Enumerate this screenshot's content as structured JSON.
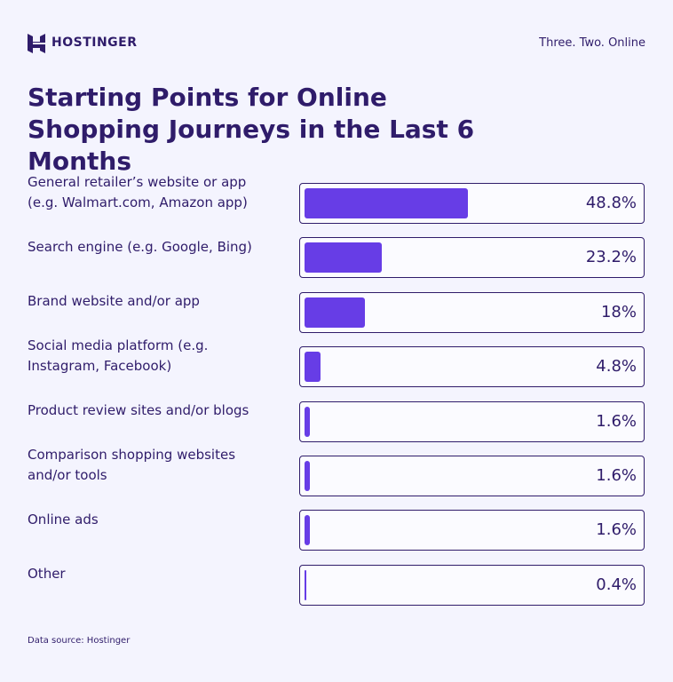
{
  "header": {
    "brand": "HOSTINGER",
    "tagline": "Three. Two. Online"
  },
  "chart_data": {
    "type": "bar",
    "orientation": "horizontal",
    "title": "Starting Points for Online Shopping Journeys in the Last 6 Months",
    "categories": [
      "General retailer’s website or app (e.g. Walmart.com, Amazon app)",
      "Search engine (e.g. Google, Bing)",
      "Brand website and/or app",
      "Social media platform (e.g. Instagram, Facebook)",
      "Product review sites and/or blogs",
      "Comparison shopping websites and/or tools",
      "Online ads",
      "Other"
    ],
    "values": [
      48.8,
      23.2,
      18,
      4.8,
      1.6,
      1.6,
      1.6,
      0.4
    ],
    "value_labels": [
      "48.8%",
      "23.2%",
      "18%",
      "4.8%",
      "1.6%",
      "1.6%",
      "1.6%",
      "0.4%"
    ],
    "xlim": [
      0,
      100
    ],
    "color": "#673de6"
  },
  "source": "Data source: Hostinger"
}
